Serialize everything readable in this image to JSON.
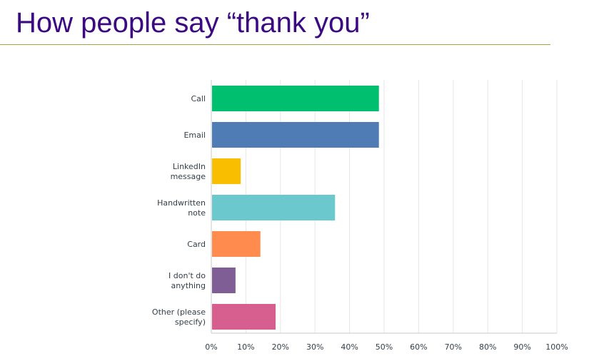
{
  "slide": {
    "title": "How people say “thank you”"
  },
  "chart_data": {
    "type": "bar",
    "orientation": "horizontal",
    "title": "",
    "xlabel": "",
    "ylabel": "",
    "xlim": [
      0,
      100
    ],
    "categories": [
      [
        "Call"
      ],
      [
        "Email"
      ],
      [
        "LinkedIn",
        "message"
      ],
      [
        "Handwritten",
        "note"
      ],
      [
        "Card"
      ],
      [
        "I don't do",
        "anything"
      ],
      [
        "Other (please",
        "specify)"
      ]
    ],
    "values": [
      48.5,
      48.5,
      8.5,
      35.8,
      14.2,
      7,
      18.6
    ],
    "colors": [
      "#00bf6f",
      "#507cb6",
      "#f9be00",
      "#6bc8cd",
      "#ff8b4f",
      "#7f5e96",
      "#d65f8f"
    ],
    "ticks": [
      "0%",
      "10%",
      "20%",
      "30%",
      "40%",
      "50%",
      "60%",
      "70%",
      "80%",
      "90%",
      "100%"
    ],
    "grid": true
  }
}
